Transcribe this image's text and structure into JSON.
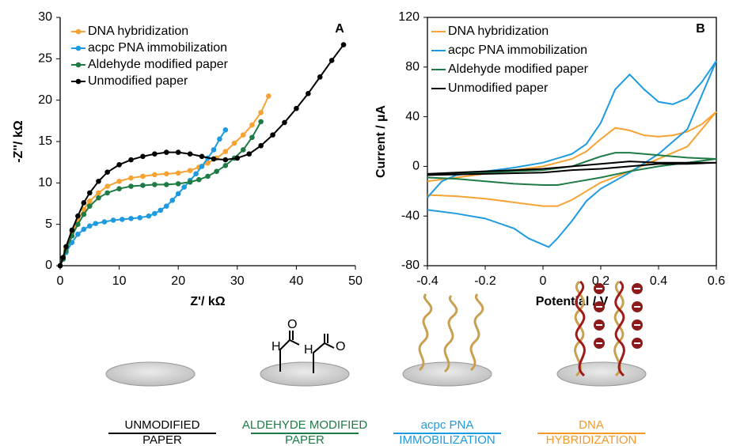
{
  "chart_data": [
    {
      "type": "line",
      "panel": "A",
      "markers": true,
      "xlabel": "Z'/ kΩ",
      "ylabel": "-Z''/ kΩ",
      "xlim": [
        0,
        50
      ],
      "xticks": [
        0,
        10,
        20,
        30,
        40,
        50
      ],
      "ylim": [
        0,
        30
      ],
      "yticks": [
        0,
        5,
        10,
        15,
        20,
        25,
        30
      ],
      "series": [
        {
          "name": "DNA hybridization",
          "color": "#f7a233",
          "x": [
            0,
            0.5,
            1,
            2,
            3,
            4,
            5,
            6.5,
            8,
            10,
            12,
            14,
            16,
            18,
            20,
            22,
            23.5,
            25,
            26.5,
            28,
            29.5,
            31,
            32.5,
            34,
            35.3
          ],
          "values": [
            0,
            0.8,
            2,
            4,
            5.5,
            6.8,
            7.8,
            8.8,
            9.6,
            10.2,
            10.6,
            10.8,
            11,
            11.1,
            11.2,
            11.5,
            11.9,
            12.4,
            13,
            13.8,
            14.8,
            15.8,
            17,
            18.5,
            20.5
          ]
        },
        {
          "name": "acpc PNA immobilization",
          "color": "#1e9be0",
          "x": [
            0,
            0.5,
            1,
            2,
            3,
            4,
            5,
            6,
            7.5,
            9,
            10.5,
            12,
            13.5,
            15,
            16,
            17,
            18,
            19,
            20,
            21,
            22,
            23,
            24,
            25,
            26,
            27,
            28
          ],
          "values": [
            0,
            0.8,
            1.6,
            2.8,
            3.8,
            4.4,
            4.8,
            5.1,
            5.3,
            5.5,
            5.6,
            5.7,
            5.8,
            6,
            6.3,
            6.7,
            7.2,
            7.9,
            8.7,
            9.5,
            10.3,
            11.1,
            12,
            13,
            14,
            15.3,
            16.4
          ]
        },
        {
          "name": "Aldehyde modified paper",
          "color": "#1e7b45",
          "x": [
            0,
            0.5,
            1,
            2,
            3,
            4,
            5,
            6.5,
            8,
            10,
            12,
            14,
            16,
            18,
            20,
            22,
            23.5,
            25,
            26.5,
            28,
            29.5,
            31,
            32.5,
            34
          ],
          "values": [
            0,
            0.8,
            1.8,
            3.6,
            5,
            6.2,
            7.2,
            8.2,
            8.8,
            9.3,
            9.6,
            9.7,
            9.8,
            9.8,
            9.9,
            10.1,
            10.4,
            10.8,
            11.4,
            12.1,
            13,
            14,
            15.5,
            17.4
          ]
        },
        {
          "name": "Unmodified paper",
          "color": "#000000",
          "x": [
            0,
            0.5,
            1,
            2,
            3,
            4,
            5,
            6.5,
            8,
            10,
            12,
            14,
            16,
            18,
            20,
            22,
            24,
            26,
            28,
            30,
            32,
            34,
            36,
            38,
            40,
            42,
            44,
            46,
            48
          ],
          "values": [
            0,
            1,
            2.3,
            4.3,
            6,
            7.6,
            8.8,
            10.2,
            11.3,
            12.2,
            12.8,
            13.2,
            13.5,
            13.7,
            13.7,
            13.5,
            13.2,
            12.9,
            12.8,
            13,
            13.5,
            14.5,
            15.8,
            17.3,
            19,
            20.8,
            22.8,
            24.8,
            26.7
          ]
        }
      ]
    },
    {
      "type": "line",
      "panel": "B",
      "markers": false,
      "xlabel": "Potential / V",
      "ylabel": "Current / µA",
      "xlim": [
        -0.4,
        0.6
      ],
      "xticks": [
        -0.4,
        -0.2,
        0,
        0.2,
        0.4,
        0.6
      ],
      "ylim": [
        -80,
        120
      ],
      "yticks": [
        -80,
        -40,
        0,
        40,
        80,
        120
      ],
      "series": [
        {
          "name": "DNA hybridization",
          "color": "#f7a233",
          "x": [
            -0.4,
            -0.3,
            -0.2,
            -0.1,
            0,
            0.1,
            0.15,
            0.2,
            0.25,
            0.3,
            0.35,
            0.4,
            0.45,
            0.5,
            0.55,
            0.6,
            0.5,
            0.4,
            0.3,
            0.2,
            0.15,
            0.1,
            0.05,
            0,
            -0.1,
            -0.2,
            -0.3,
            -0.4
          ],
          "values": [
            -12,
            -9,
            -6,
            -3,
            0,
            6,
            12,
            22,
            31,
            29,
            25,
            24,
            25,
            28,
            34,
            44,
            16,
            6,
            -4,
            -13,
            -20,
            -27,
            -32,
            -32,
            -29,
            -26,
            -24,
            -23
          ]
        },
        {
          "name": "acpc PNA immobilization",
          "color": "#1e9be0",
          "x": [
            -0.4,
            -0.35,
            -0.3,
            -0.2,
            -0.1,
            0,
            0.1,
            0.15,
            0.2,
            0.25,
            0.3,
            0.35,
            0.4,
            0.45,
            0.5,
            0.55,
            0.6,
            0.5,
            0.4,
            0.3,
            0.2,
            0.15,
            0.1,
            0.05,
            0.02,
            -0.05,
            -0.1,
            -0.2,
            -0.3,
            -0.4
          ],
          "values": [
            -25,
            -12,
            -7,
            -4,
            -1,
            3,
            10,
            18,
            35,
            62,
            74,
            62,
            52,
            50,
            55,
            68,
            85,
            30,
            10,
            -5,
            -18,
            -28,
            -44,
            -58,
            -65,
            -58,
            -50,
            -42,
            -38,
            -35
          ]
        },
        {
          "name": "Aldehyde modified paper",
          "color": "#1e7b45",
          "x": [
            -0.4,
            -0.2,
            0,
            0.1,
            0.15,
            0.2,
            0.25,
            0.3,
            0.4,
            0.5,
            0.6,
            0.5,
            0.4,
            0.3,
            0.2,
            0.1,
            0.05,
            0,
            -0.1,
            -0.2,
            -0.3,
            -0.4
          ],
          "values": [
            -7,
            -5,
            -3,
            0,
            4,
            8,
            11,
            11,
            9,
            7,
            6,
            3,
            0,
            -4,
            -9,
            -13,
            -15,
            -15,
            -14,
            -12,
            -10,
            -9
          ]
        },
        {
          "name": "Unmodified paper",
          "color": "#000000",
          "x": [
            -0.4,
            -0.2,
            0,
            0.1,
            0.2,
            0.3,
            0.4,
            0.5,
            0.6,
            0.5,
            0.4,
            0.3,
            0.2,
            0.1,
            0,
            -0.2,
            -0.4
          ],
          "values": [
            -6,
            -4,
            -2,
            0,
            2,
            4,
            3,
            3,
            3,
            2,
            2,
            0,
            -2,
            -3,
            -5,
            -6,
            -7
          ]
        }
      ]
    }
  ],
  "diagram": {
    "aldehyde": {
      "hydrogen": "H",
      "oxygen": "O"
    },
    "steps": [
      {
        "lines": [
          "UNMODIFIED",
          "PAPER"
        ]
      },
      {
        "lines": [
          "ALDEHYDE MODIFIED",
          "PAPER"
        ]
      },
      {
        "lines": [
          "acpc PNA",
          "IMMOBILIZATION"
        ]
      },
      {
        "lines": [
          "DNA",
          "HYBRIDIZATION"
        ]
      }
    ]
  }
}
